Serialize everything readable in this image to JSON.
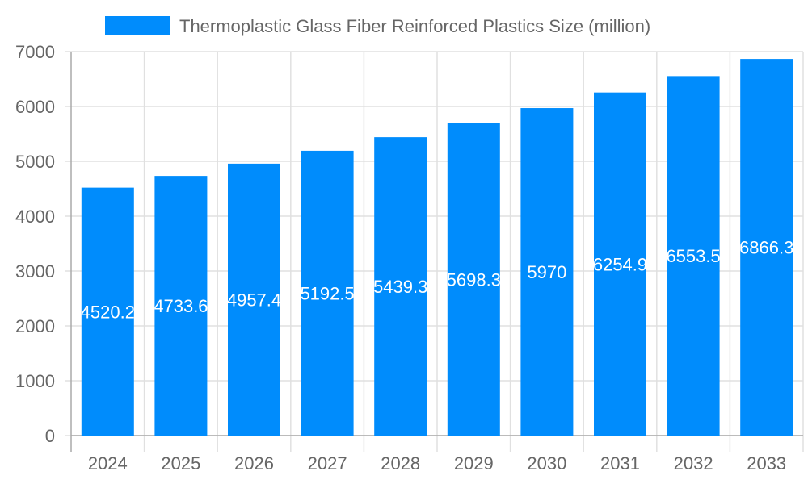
{
  "chart_data": {
    "type": "bar",
    "title": "",
    "xlabel": "",
    "ylabel": "",
    "categories": [
      "2024",
      "2025",
      "2026",
      "2027",
      "2028",
      "2029",
      "2030",
      "2031",
      "2032",
      "2033"
    ],
    "series": [
      {
        "name": "Thermoplastic Glass Fiber Reinforced Plastics Size (million)",
        "values": [
          4520.2,
          4733.6,
          4957.4,
          5192.5,
          5439.3,
          5698.3,
          5970,
          6254.9,
          6553.5,
          6866.3
        ],
        "color": "#008cfc"
      }
    ],
    "data_labels": [
      "4520.2",
      "4733.6",
      "4957.4",
      "5192.5",
      "5439.3",
      "5698.3",
      "5970",
      "6254.9",
      "6553.5",
      "6866.3"
    ],
    "ylim": [
      0,
      7000
    ],
    "yticks": [
      "0",
      "1000",
      "2000",
      "3000",
      "4000",
      "5000",
      "6000",
      "7000"
    ],
    "grid": true,
    "legend_position": "top"
  }
}
